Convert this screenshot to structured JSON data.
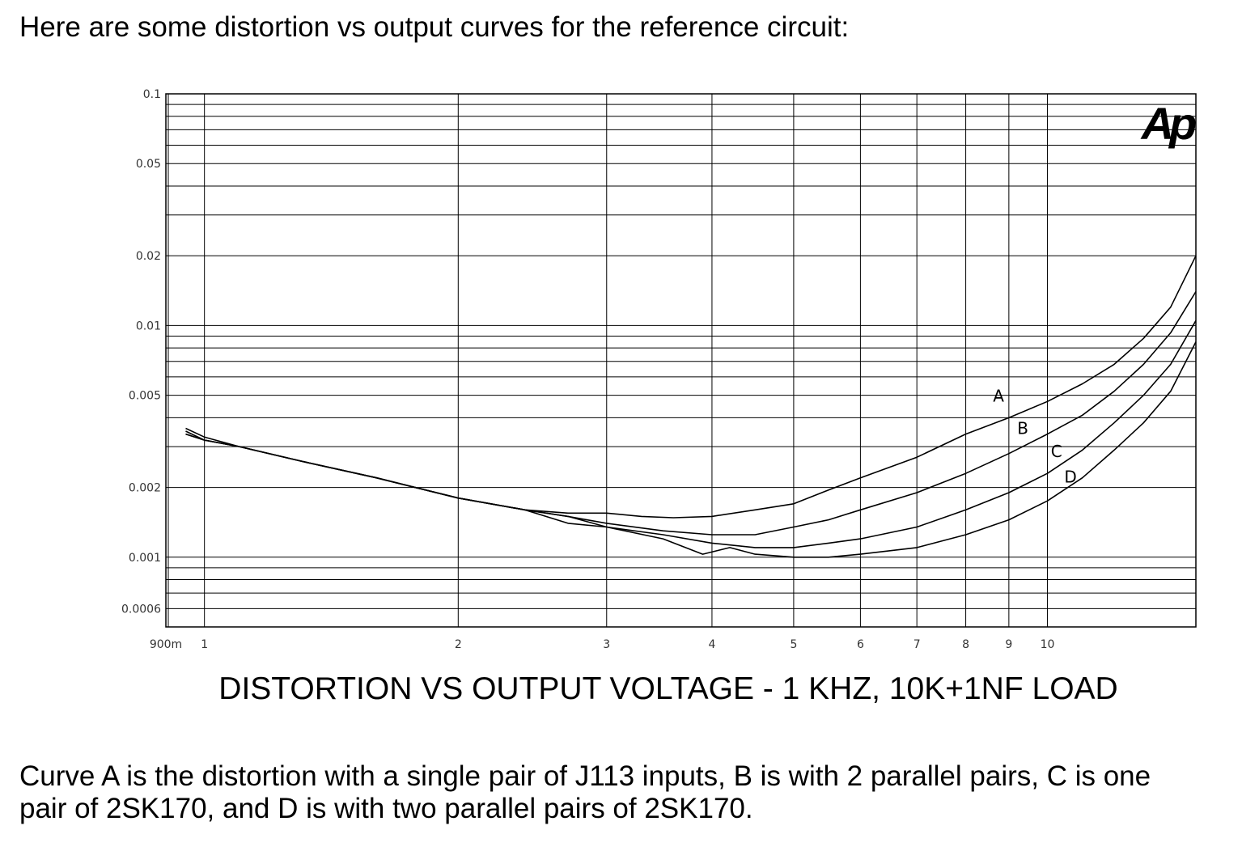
{
  "intro_text": "Here are some distortion vs output curves for the reference circuit:",
  "logo_text": "Ap",
  "caption": {
    "line1": "Curve A is the distortion with a single pair of J113 inputs, B is with 2 parallel pairs, C is one",
    "line2": "pair of 2SK170, and D is with two parallel pairs of 2SK170."
  },
  "chart_data": {
    "type": "line",
    "title": "DISTORTION VS OUTPUT VOLTAGE - 1 KHZ, 10K+1NF LOAD",
    "xlabel": "",
    "ylabel": "",
    "x_scale": "log",
    "y_scale": "log",
    "xlim": [
      0.9,
      15
    ],
    "ylim": [
      0.0005,
      0.1
    ],
    "grid": true,
    "x_ticks": [
      {
        "v": 0.9,
        "label": "900m"
      },
      {
        "v": 1,
        "label": "1"
      },
      {
        "v": 2,
        "label": "2"
      },
      {
        "v": 3,
        "label": "3"
      },
      {
        "v": 4,
        "label": "4"
      },
      {
        "v": 5,
        "label": "5"
      },
      {
        "v": 6,
        "label": "6"
      },
      {
        "v": 7,
        "label": "7"
      },
      {
        "v": 8,
        "label": "8"
      },
      {
        "v": 9,
        "label": "9"
      },
      {
        "v": 10,
        "label": "10"
      }
    ],
    "y_ticks": [
      {
        "v": 0.1,
        "label": "0.1"
      },
      {
        "v": 0.05,
        "label": "0.05"
      },
      {
        "v": 0.02,
        "label": "0.02"
      },
      {
        "v": 0.01,
        "label": "0.01"
      },
      {
        "v": 0.005,
        "label": "0.005"
      },
      {
        "v": 0.002,
        "label": "0.002"
      },
      {
        "v": 0.001,
        "label": "0.001"
      },
      {
        "v": 0.0006,
        "label": "0.0006"
      }
    ],
    "x_gridlines": [
      1,
      2,
      3,
      4,
      5,
      6,
      7,
      8,
      9,
      10
    ],
    "y_gridlines": [
      0.1,
      0.09,
      0.08,
      0.07,
      0.06,
      0.05,
      0.04,
      0.03,
      0.02,
      0.01,
      0.009,
      0.008,
      0.007,
      0.006,
      0.005,
      0.004,
      0.003,
      0.002,
      0.001,
      0.0009,
      0.0008,
      0.0007,
      0.0006
    ],
    "series": [
      {
        "name": "A",
        "x": [
          0.95,
          1.0,
          1.1,
          1.3,
          1.6,
          2.0,
          2.4,
          2.7,
          3.0,
          3.3,
          3.6,
          4.0,
          4.5,
          5.0,
          5.5,
          6.0,
          7.0,
          8.0,
          9.0,
          10.0,
          11.0,
          12.0,
          13.0,
          14.0,
          15.0
        ],
        "y": [
          0.0034,
          0.0032,
          0.003,
          0.0026,
          0.0022,
          0.0018,
          0.0016,
          0.00155,
          0.00155,
          0.0015,
          0.00148,
          0.0015,
          0.0016,
          0.0017,
          0.00195,
          0.0022,
          0.0027,
          0.0034,
          0.004,
          0.0047,
          0.0056,
          0.0068,
          0.0088,
          0.012,
          0.02
        ]
      },
      {
        "name": "B",
        "x": [
          0.95,
          1.0,
          1.1,
          1.3,
          1.6,
          2.0,
          2.4,
          2.7,
          3.0,
          3.5,
          4.0,
          4.5,
          5.0,
          5.5,
          6.0,
          7.0,
          8.0,
          9.0,
          10.0,
          11.0,
          12.0,
          13.0,
          14.0,
          15.0
        ],
        "y": [
          0.0034,
          0.0032,
          0.003,
          0.0026,
          0.0022,
          0.0018,
          0.0016,
          0.0015,
          0.0014,
          0.0013,
          0.00125,
          0.00125,
          0.00135,
          0.00145,
          0.0016,
          0.0019,
          0.0023,
          0.0028,
          0.0034,
          0.0041,
          0.0052,
          0.0068,
          0.0093,
          0.014
        ]
      },
      {
        "name": "C",
        "x": [
          0.95,
          1.0,
          1.1,
          1.3,
          1.6,
          2.0,
          2.4,
          2.7,
          3.0,
          3.5,
          4.0,
          4.5,
          5.0,
          5.5,
          6.0,
          7.0,
          8.0,
          9.0,
          10.0,
          11.0,
          12.0,
          13.0,
          14.0,
          15.0
        ],
        "y": [
          0.0035,
          0.0032,
          0.003,
          0.0026,
          0.0022,
          0.0018,
          0.0016,
          0.0014,
          0.00135,
          0.00125,
          0.00115,
          0.0011,
          0.0011,
          0.00115,
          0.0012,
          0.00135,
          0.0016,
          0.0019,
          0.0023,
          0.0029,
          0.0038,
          0.005,
          0.0068,
          0.0105
        ]
      },
      {
        "name": "D",
        "x": [
          0.95,
          1.0,
          1.1,
          1.3,
          1.6,
          2.0,
          2.4,
          2.7,
          3.0,
          3.5,
          3.9,
          4.2,
          4.5,
          5.0,
          5.5,
          6.0,
          7.0,
          8.0,
          9.0,
          10.0,
          11.0,
          12.0,
          13.0,
          14.0,
          15.0
        ],
        "y": [
          0.0036,
          0.0033,
          0.003,
          0.0026,
          0.0022,
          0.0018,
          0.0016,
          0.0015,
          0.00135,
          0.0012,
          0.00103,
          0.0011,
          0.00103,
          0.001,
          0.001,
          0.00103,
          0.0011,
          0.00125,
          0.00145,
          0.00175,
          0.0022,
          0.0029,
          0.0038,
          0.0052,
          0.0085
        ]
      }
    ],
    "curve_labels": [
      {
        "text": "A",
        "x": 8.75,
        "y": 0.0047
      },
      {
        "text": "B",
        "x": 9.35,
        "y": 0.0034
      },
      {
        "text": "C",
        "x": 10.25,
        "y": 0.0027
      },
      {
        "text": "D",
        "x": 10.65,
        "y": 0.0021
      }
    ]
  }
}
